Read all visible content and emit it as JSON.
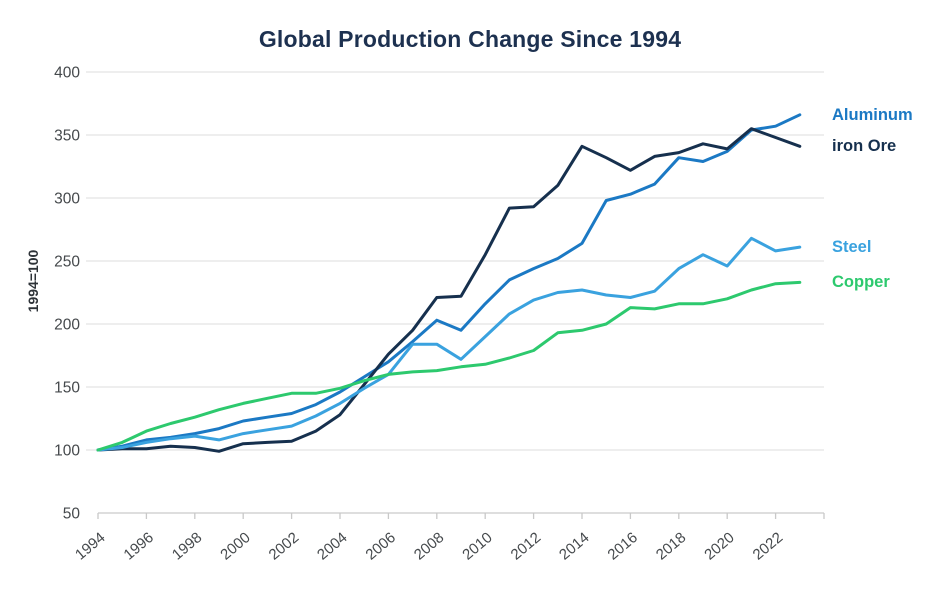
{
  "title": "Global Production Change Since 1994",
  "colors": {
    "title": "#1d3150",
    "axis_text": "#45494c",
    "gridline": "#e4e4e4",
    "axis_line": "#c9c9c9",
    "background": "#ffffff"
  },
  "y_axis": {
    "label": "1994=100",
    "tick_labels": [
      "50",
      "100",
      "150",
      "200",
      "250",
      "300",
      "350",
      "400"
    ],
    "min": 50,
    "max": 400
  },
  "x_axis": {
    "tick_labels": [
      "1994",
      "1996",
      "1998",
      "2000",
      "2002",
      "2004",
      "2006",
      "2008",
      "2010",
      "2012",
      "2014",
      "2016",
      "2018",
      "2020",
      "2022"
    ]
  },
  "legend": [
    {
      "label": "Aluminum",
      "color": "#1b79c4"
    },
    {
      "label": "iron Ore",
      "color": "#16304e"
    },
    {
      "label": "Steel",
      "color": "#3aa2df"
    },
    {
      "label": "Copper",
      "color": "#2dc96e"
    }
  ],
  "chart_data": {
    "type": "line",
    "title": "Global Production Change Since 1994",
    "xlabel": "",
    "ylabel": "1994=100",
    "ylim": [
      50,
      400
    ],
    "grid": true,
    "legend_position": "right",
    "x": [
      1994,
      1995,
      1996,
      1997,
      1998,
      1999,
      2000,
      2001,
      2002,
      2003,
      2004,
      2005,
      2006,
      2007,
      2008,
      2009,
      2010,
      2011,
      2012,
      2013,
      2014,
      2015,
      2016,
      2017,
      2018,
      2019,
      2020,
      2021,
      2022,
      2023
    ],
    "series": [
      {
        "name": "Aluminum",
        "color": "#1b79c4",
        "values": [
          100,
          103,
          108,
          110,
          113,
          117,
          123,
          126,
          129,
          136,
          146,
          158,
          170,
          186,
          203,
          195,
          216,
          235,
          244,
          252,
          264,
          298,
          303,
          311,
          332,
          329,
          337,
          354,
          357,
          366
        ]
      },
      {
        "name": "iron Ore",
        "color": "#16304e",
        "values": [
          100,
          101,
          101,
          103,
          102,
          99,
          105,
          106,
          107,
          115,
          128,
          152,
          176,
          195,
          221,
          222,
          255,
          292,
          293,
          310,
          341,
          332,
          322,
          333,
          336,
          343,
          339,
          355,
          348,
          341
        ]
      },
      {
        "name": "Steel",
        "color": "#3aa2df",
        "values": [
          100,
          102,
          106,
          109,
          111,
          108,
          113,
          116,
          119,
          127,
          137,
          149,
          160,
          184,
          184,
          172,
          190,
          208,
          219,
          225,
          227,
          223,
          221,
          226,
          244,
          255,
          246,
          268,
          258,
          261
        ]
      },
      {
        "name": "Copper",
        "color": "#2dc96e",
        "values": [
          100,
          106,
          115,
          121,
          126,
          132,
          137,
          141,
          145,
          145,
          149,
          155,
          160,
          162,
          163,
          166,
          168,
          173,
          179,
          193,
          195,
          200,
          213,
          212,
          216,
          216,
          220,
          227,
          232,
          233
        ]
      }
    ]
  }
}
